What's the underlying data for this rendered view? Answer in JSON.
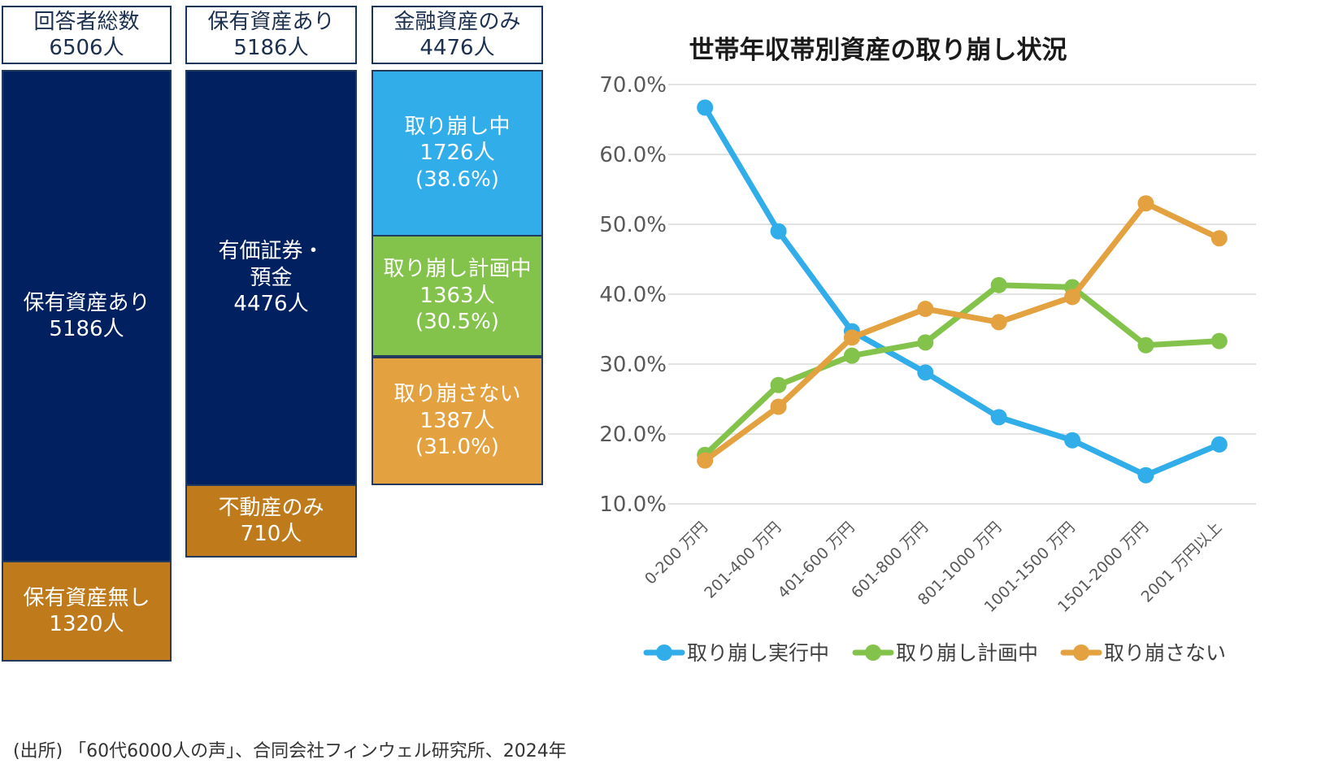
{
  "columns": {
    "total": {
      "header": [
        "回答者総数",
        "6506人"
      ],
      "segments": {
        "with_assets": [
          "保有資産あり",
          "5186人"
        ],
        "no_assets": [
          "保有資産無し",
          "1320人"
        ]
      }
    },
    "holders": {
      "header": [
        "保有資産あり",
        "5186人"
      ],
      "segments": {
        "securities": [
          "有価証券・",
          "預金",
          "4476人"
        ],
        "real_estate": [
          "不動産のみ",
          "710人"
        ]
      }
    },
    "financial": {
      "header": [
        "金融資産のみ",
        "4476人"
      ],
      "segments": {
        "drawing_down": [
          "取り崩し中",
          "1726人",
          "(38.6%)"
        ],
        "planning": [
          "取り崩し計画中",
          "1363人",
          "(30.5%)"
        ],
        "not_drawing": [
          "取り崩さない",
          "1387人",
          "(31.0%)"
        ]
      }
    }
  },
  "colors": {
    "navy": "#002060",
    "gold": "#bf7b1b",
    "sky": "#31adea",
    "grass": "#84c34b",
    "amber": "#e3a13f"
  },
  "chart_data": {
    "type": "line",
    "title": "世帯年収帯別資産の取り崩し状況",
    "xlabel": "",
    "ylabel": "",
    "categories": [
      "0-200 万円",
      "201-400 万円",
      "401-600 万円",
      "601-800 万円",
      "801-1000 万円",
      "1001-1500 万円",
      "1501-2000 万円",
      "2001 万円以上"
    ],
    "ylim": [
      10,
      70
    ],
    "yticks": [
      "70.0%",
      "60.0%",
      "50.0%",
      "40.0%",
      "30.0%",
      "20.0%",
      "10.0%"
    ],
    "grid": true,
    "legend_position": "bottom",
    "series": [
      {
        "name": "取り崩し実行中",
        "color": "#31adea",
        "values": [
          66.7,
          49.0,
          34.7,
          28.8,
          22.4,
          19.1,
          14.1,
          18.5
        ]
      },
      {
        "name": "取り崩し計画中",
        "color": "#84c34b",
        "values": [
          17.0,
          27.0,
          31.2,
          33.1,
          41.3,
          41.0,
          32.7,
          33.3
        ]
      },
      {
        "name": "取り崩さない",
        "color": "#e3a13f",
        "values": [
          16.2,
          23.9,
          33.8,
          37.9,
          36.0,
          39.6,
          53.0,
          48.0
        ]
      }
    ]
  },
  "source": "(出所) 「60代6000人の声」、合同会社フィンウェル研究所、2024年"
}
